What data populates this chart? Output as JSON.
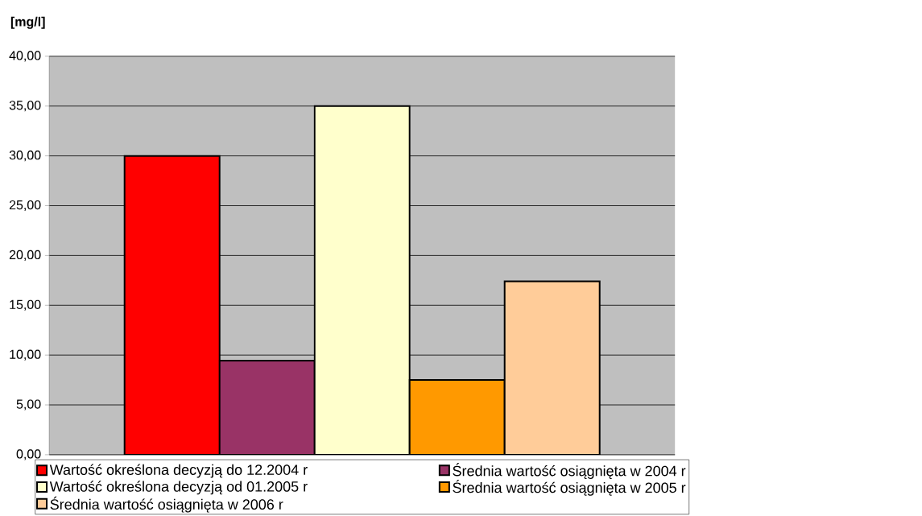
{
  "chart_data": {
    "type": "bar",
    "ylabel": "[mg/l]",
    "categories": [
      null
    ],
    "series": [
      {
        "name": "Wartość określona decyzją do 12.2004 r",
        "color": "#ff0000",
        "values": [
          30
        ]
      },
      {
        "name": "Średnia wartość osiągnięta w 2004 r",
        "color": "#993366",
        "values": [
          9.45
        ]
      },
      {
        "name": "Wartość określona decyzją od 01.2005 r",
        "color": "#ffffcc",
        "values": [
          35
        ]
      },
      {
        "name": "Średnia wartość osiągnięta w 2005 r",
        "color": "#ff9900",
        "values": [
          7.5
        ]
      },
      {
        "name": "Średnia wartość osiągnięta w 2006 r",
        "color": "#ffcc99",
        "values": [
          17.4
        ]
      }
    ],
    "ylim": [
      0,
      40
    ],
    "yticks": [
      {
        "value": 0,
        "label": "0,00"
      },
      {
        "value": 5,
        "label": "5,00"
      },
      {
        "value": 10,
        "label": "10,00"
      },
      {
        "value": 15,
        "label": "15,00"
      },
      {
        "value": 20,
        "label": "20,00"
      },
      {
        "value": 25,
        "label": "25,00"
      },
      {
        "value": 30,
        "label": "30,00"
      },
      {
        "value": 35,
        "label": "35,00"
      },
      {
        "value": 40,
        "label": "40,00"
      }
    ],
    "grid": "y",
    "legend": "bottom"
  }
}
